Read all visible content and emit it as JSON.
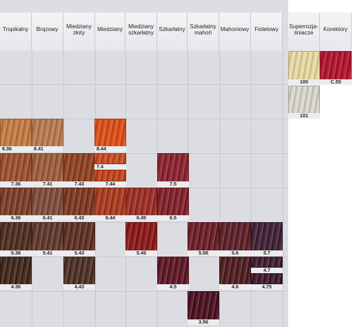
{
  "headers": {
    "tropikalny": "Tropikalny",
    "brazowy": "Brązowy",
    "miedziany_zloty": "Miedziany\nzłoty",
    "miedziany": "Miedziany",
    "miedziany_szkarlatny": "Miedziany\nszkarłatny",
    "szkarlatny": "Szkarłatny",
    "szkarlatny_mahon": "Szkarłatny\nmahoń",
    "mahoniowy": "Mahoniowy",
    "fioletowy": "Fioletowy",
    "superrozjasniacze": "Superrozja-\nśniacze",
    "korektory": "Korektory"
  },
  "shades": {
    "s100": "100",
    "sC55": "C.55",
    "s101": "101",
    "s836": "8.36",
    "s841": "8.41",
    "s844": "8.44",
    "s74": "7.4",
    "s736": "7.36",
    "s741": "7.41",
    "s743": "7.43",
    "s744": "7.44",
    "s75": "7.5",
    "s636": "6.36",
    "s641": "6.41",
    "s643": "6.43",
    "s644": "6.44",
    "s645": "6.45",
    "s65": "6.5",
    "s536": "5.36",
    "s541": "5.41",
    "s543": "5.43",
    "s545": "5.45",
    "s556": "5.56",
    "s56": "5.6",
    "s57": "5.7",
    "s47": "4.7",
    "s436": "4.36",
    "s443": "4.43",
    "s45": "4.5",
    "s46": "4.6",
    "s475": "4.75",
    "s356": "3.56"
  },
  "colors": {
    "s100": "#e9d9a0",
    "sC55": "#b0102a",
    "s101": "#d9d6cc",
    "s836": "#c57841",
    "s841": "#b7774e",
    "s844": "#dd4a14",
    "s74": "#c8471d",
    "s736": "#9a4e2a",
    "s741": "#9c5a3a",
    "s743": "#8e3f1e",
    "s744": "#c2401a",
    "s75": "#8a1f2a",
    "s636": "#7a3a26",
    "s641": "#7d4a3a",
    "s643": "#7a3520",
    "s644": "#a8371c",
    "s645": "#9a2a22",
    "s65": "#7e1e25",
    "s536": "#4e2a1c",
    "s541": "#5c3528",
    "s543": "#5c2e1e",
    "s545": "#8a1414",
    "s556": "#6a1a24",
    "s56": "#5a1c24",
    "s57": "#3d1e34",
    "s47": "#3e1a2c",
    "s436": "#3e2418",
    "s443": "#4a2c22",
    "s45": "#5a1420",
    "s46": "#4c1a1c",
    "s475": "#3a1626",
    "s356": "#4a0c1c"
  }
}
